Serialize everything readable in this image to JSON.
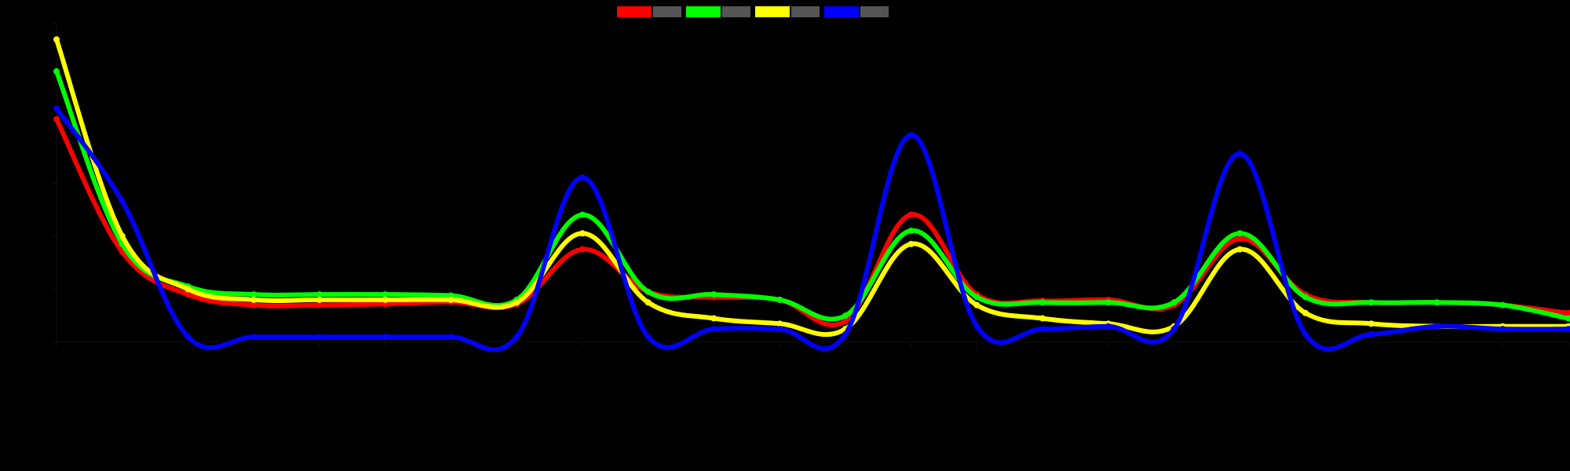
{
  "chart_data": {
    "type": "line",
    "title": "",
    "xlabel": "",
    "ylabel": "",
    "background": "#000000",
    "grid": false,
    "legend_position": "top-center",
    "x_categories": [
      "",
      "",
      "",
      "",
      "",
      "",
      "",
      "",
      "",
      "",
      "",
      "",
      "",
      "",
      "",
      "",
      "",
      "",
      "",
      "",
      "",
      "",
      "",
      ""
    ],
    "y_ticks": [
      {
        "value": 0,
        "label": ""
      },
      {
        "value": 100,
        "label": ""
      },
      {
        "value": 200,
        "label": ""
      },
      {
        "value": 300,
        "label": ""
      },
      {
        "value": 400,
        "label": ""
      },
      {
        "value": 500,
        "label": ""
      },
      {
        "value": 600,
        "label": ""
      }
    ],
    "ylim": [
      0,
      600
    ],
    "series": [
      {
        "name": "",
        "color": "#ff0000",
        "values": [
          420,
          170,
          90,
          70,
          70,
          72,
          76,
          72,
          175,
          95,
          85,
          80,
          40,
          240,
          90,
          78,
          80,
          70,
          195,
          90,
          75,
          75,
          70,
          55
        ]
      },
      {
        "name": "",
        "color": "#00ff00",
        "values": [
          510,
          185,
          105,
          90,
          90,
          90,
          88,
          80,
          240,
          95,
          90,
          80,
          50,
          210,
          85,
          75,
          75,
          75,
          205,
          85,
          75,
          75,
          70,
          45
        ]
      },
      {
        "name": "",
        "color": "#ffff00",
        "values": [
          570,
          200,
          100,
          80,
          80,
          80,
          80,
          75,
          205,
          75,
          45,
          35,
          25,
          185,
          70,
          45,
          35,
          30,
          175,
          55,
          35,
          30,
          30,
          30
        ]
      },
      {
        "name": "",
        "color": "#0000ff",
        "values": [
          440,
          265,
          10,
          10,
          10,
          10,
          10,
          10,
          310,
          10,
          25,
          25,
          15,
          390,
          30,
          25,
          30,
          25,
          355,
          15,
          15,
          30,
          25,
          25
        ]
      }
    ]
  }
}
